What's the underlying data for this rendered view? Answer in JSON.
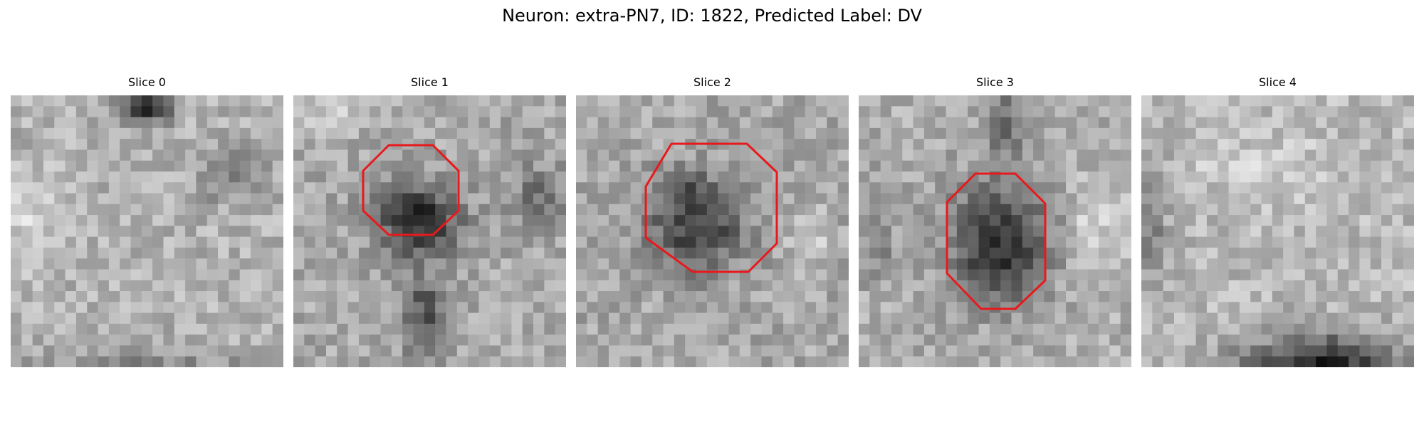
{
  "figure": {
    "title": "Neuron: extra-PN7, ID: 1822, Predicted Label: DV"
  },
  "panels": [
    {
      "title": "Slice 0",
      "roi": false
    },
    {
      "title": "Slice 1",
      "roi": true
    },
    {
      "title": "Slice 2",
      "roi": true
    },
    {
      "title": "Slice 3",
      "roi": true
    },
    {
      "title": "Slice 4",
      "roi": false
    }
  ],
  "colors": {
    "roi_outline": "#e8191c",
    "colormap": "grayscale"
  }
}
